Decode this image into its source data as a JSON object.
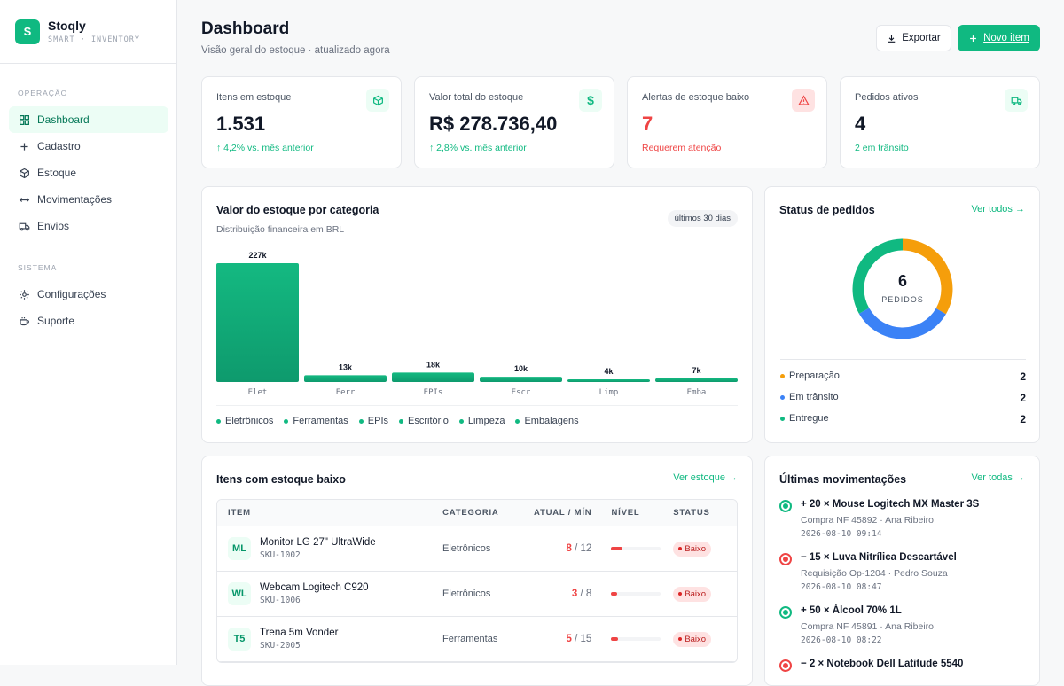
{
  "brand": {
    "initial": "S",
    "name": "Stoqly",
    "tagline": "SMART · INVENTORY"
  },
  "sidebar": {
    "sections": [
      {
        "title": "OPERAÇÃO",
        "items": [
          {
            "label": "Dashboard",
            "icon": "grid-icon",
            "active": true
          },
          {
            "label": "Cadastro",
            "icon": "plus-icon"
          },
          {
            "label": "Estoque",
            "icon": "box-icon"
          },
          {
            "label": "Movimentações",
            "icon": "arrows-icon"
          },
          {
            "label": "Envios",
            "icon": "truck-icon"
          }
        ]
      },
      {
        "title": "SISTEMA",
        "items": [
          {
            "label": "Configurações",
            "icon": "gear-icon"
          },
          {
            "label": "Suporte",
            "icon": "coffee-icon"
          }
        ]
      }
    ]
  },
  "header": {
    "title": "Dashboard",
    "subtitle": "Visão geral do estoque · atualizado agora",
    "export_label": "Exportar",
    "new_label": "Novo item"
  },
  "kpis": [
    {
      "label": "Itens em estoque",
      "value": "1.531",
      "foot": "↑ 4,2% vs. mês anterior",
      "icon": "box-icon",
      "tone": "green"
    },
    {
      "label": "Valor total do estoque",
      "value": "R$ 278.736,40",
      "foot": "↑ 2,8% vs. mês anterior",
      "icon": "dollar-icon",
      "tone": "green"
    },
    {
      "label": "Alertas de estoque baixo",
      "value": "7",
      "foot": "Requerem atenção",
      "icon": "warning-icon",
      "tone": "red"
    },
    {
      "label": "Pedidos ativos",
      "value": "4",
      "foot": "2 em trânsito",
      "icon": "truck-icon",
      "tone": "green"
    }
  ],
  "category_chart": {
    "title": "Valor do estoque por categoria",
    "subtitle": "Distribuição financeira em BRL",
    "period": "últimos 30 dias",
    "legend": [
      "Eletrônicos",
      "Ferramentas",
      "EPIs",
      "Escritório",
      "Limpeza",
      "Embalagens"
    ]
  },
  "chart_data": {
    "type": "bar",
    "categories": [
      "Elet",
      "Ferr",
      "EPIs",
      "Escr",
      "Limp",
      "Emba"
    ],
    "values": [
      227,
      13,
      18,
      10,
      4,
      7
    ],
    "data_labels": [
      "227k",
      "13k",
      "18k",
      "10k",
      "4k",
      "7k"
    ],
    "title": "Valor do estoque por categoria",
    "ylim": [
      0,
      227
    ],
    "grid": false,
    "legend": "bottom",
    "color": "#10b981"
  },
  "orders": {
    "title": "Status de pedidos",
    "link": "Ver todos →",
    "total": "6",
    "total_label": "PEDIDOS",
    "statuses": [
      {
        "label": "Preparação",
        "count": "2",
        "color": "#f59e0b"
      },
      {
        "label": "Em trânsito",
        "count": "2",
        "color": "#3b82f6"
      },
      {
        "label": "Entregue",
        "count": "2",
        "color": "#10b981"
      }
    ]
  },
  "low_stock": {
    "title": "Itens com estoque baixo",
    "link": "Ver estoque →",
    "columns": [
      "ITEM",
      "CATEGORIA",
      "ATUAL / MÍN",
      "NÍVEL",
      "STATUS"
    ],
    "rows": [
      {
        "initials": "ML",
        "name": "Monitor LG 27\" UltraWide",
        "sku": "SKU-1002",
        "category": "Eletrônicos",
        "current": "8",
        "min": "/ 12",
        "level": 0.22,
        "status": "Baixo"
      },
      {
        "initials": "WL",
        "name": "Webcam Logitech C920",
        "sku": "SKU-1006",
        "category": "Eletrônicos",
        "current": "3",
        "min": "/ 8",
        "level": 0.12,
        "status": "Baixo"
      },
      {
        "initials": "T5",
        "name": "Trena 5m Vonder",
        "sku": "SKU-2005",
        "category": "Ferramentas",
        "current": "5",
        "min": "/ 15",
        "level": 0.14,
        "status": "Baixo"
      }
    ]
  },
  "movements": {
    "title": "Últimas movimentações",
    "link": "Ver todas →",
    "items": [
      {
        "title": "+ 20 × Mouse Logitech MX Master 3S",
        "sub": "Compra NF 45892 · Ana Ribeiro",
        "time": "2026-08-10 09:14",
        "tone": "green"
      },
      {
        "title": "− 15 × Luva Nitrílica Descartável",
        "sub": "Requisição Op-1204 · Pedro Souza",
        "time": "2026-08-10 08:47",
        "tone": "red"
      },
      {
        "title": "+ 50 × Álcool 70% 1L",
        "sub": "Compra NF 45891 · Ana Ribeiro",
        "time": "2026-08-10 08:22",
        "tone": "green"
      },
      {
        "title": "− 2 × Notebook Dell Latitude 5540",
        "sub": "",
        "time": "",
        "tone": "red"
      }
    ]
  }
}
